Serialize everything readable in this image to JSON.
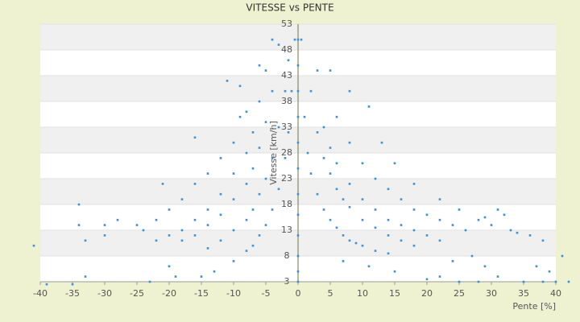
{
  "chart_data": {
    "type": "scatter",
    "title": "VITESSE vs PENTE",
    "x_label": "Pente [%]",
    "y_label": "Vitesse [km/h]",
    "color": "#3a8fd6",
    "xlim": [
      -40,
      40
    ],
    "xticks": [
      -40,
      -35,
      -30,
      -25,
      -20,
      -15,
      -10,
      -5,
      0,
      5,
      10,
      15,
      20,
      25,
      30,
      35,
      40
    ],
    "ylim": [
      3,
      53
    ],
    "yticks": [
      3,
      8,
      13,
      18,
      23,
      28,
      33,
      38,
      43,
      48,
      53
    ],
    "grid": true,
    "x": [
      0.5,
      1,
      1.5,
      2,
      3,
      4,
      5,
      6,
      7,
      8,
      9,
      10,
      12,
      14,
      2,
      3,
      4,
      5,
      6,
      7,
      8,
      10,
      12,
      14,
      16,
      18,
      4,
      5,
      6,
      8,
      10,
      12,
      14,
      16,
      18,
      20,
      22,
      6,
      8,
      10,
      12,
      14,
      16,
      18,
      20,
      22,
      24,
      26,
      3,
      5,
      8,
      11,
      13,
      15,
      18,
      22,
      25,
      28,
      30,
      33,
      20,
      25,
      28,
      31,
      35,
      38,
      40,
      42,
      39,
      37,
      41,
      36,
      34,
      38,
      31,
      29,
      32,
      27,
      29,
      15,
      11,
      7,
      24,
      22,
      -0.5,
      -1,
      -1.5,
      -2,
      -3,
      -4,
      -5,
      -6,
      -7,
      -8,
      -1.5,
      -2,
      -3,
      -4,
      -5,
      -6,
      -7,
      -8,
      -10,
      -12,
      -14,
      -3,
      -4,
      -5,
      -6,
      -7,
      -8,
      -10,
      -12,
      -14,
      -16,
      -18,
      -4,
      -5,
      -6,
      -7,
      -8,
      -10,
      -12,
      -14,
      -16,
      -18,
      -20,
      -8,
      -9,
      -10,
      -12,
      -14,
      -16,
      -18,
      -20,
      -22,
      -24,
      -41,
      -39,
      -35,
      -33,
      -34,
      -34,
      -33,
      -30,
      -30,
      -28,
      -25,
      -22,
      -21,
      -20,
      -19,
      -23,
      -15,
      -13,
      -10,
      -16,
      -11,
      -9,
      -6,
      0,
      0,
      0,
      0,
      0,
      0,
      0,
      0,
      0,
      0,
      0,
      0
    ],
    "values": [
      50,
      35,
      28,
      24,
      20,
      17,
      15,
      13.5,
      12,
      11,
      10.5,
      10,
      9,
      8.5,
      40,
      32,
      27,
      24,
      21,
      19,
      17.5,
      15,
      13.5,
      12,
      11,
      10,
      33,
      29,
      26,
      22,
      19,
      17,
      15,
      14,
      13,
      12,
      11,
      35,
      30,
      26,
      23,
      21,
      19,
      17,
      16,
      15,
      14,
      13,
      44,
      44,
      40,
      37,
      30,
      26,
      22,
      19,
      17,
      15,
      14,
      13,
      3.5,
      3,
      3,
      4,
      3,
      3,
      3,
      3,
      5,
      6,
      8,
      12,
      12.5,
      11,
      17,
      15.5,
      16,
      8,
      6,
      5,
      6,
      7,
      7,
      4,
      50,
      40,
      32,
      27,
      21,
      17,
      14,
      12,
      10,
      9,
      46,
      40,
      33,
      27,
      23,
      20,
      17,
      15,
      13,
      11,
      9.5,
      49,
      40,
      34,
      29,
      25,
      22,
      19,
      16,
      14,
      12,
      11,
      50,
      44,
      38,
      32,
      28,
      24,
      20,
      17,
      15,
      13,
      12,
      36,
      35,
      30,
      27,
      24,
      22,
      19,
      17,
      15,
      13,
      10,
      2.5,
      2.5,
      4,
      18,
      14,
      11,
      12,
      14,
      15,
      14,
      11,
      22,
      6,
      4,
      3,
      4,
      5,
      7,
      31,
      42,
      41,
      45,
      3,
      5,
      8,
      12,
      16,
      20,
      25,
      30,
      35,
      40,
      45,
      50
    ]
  }
}
